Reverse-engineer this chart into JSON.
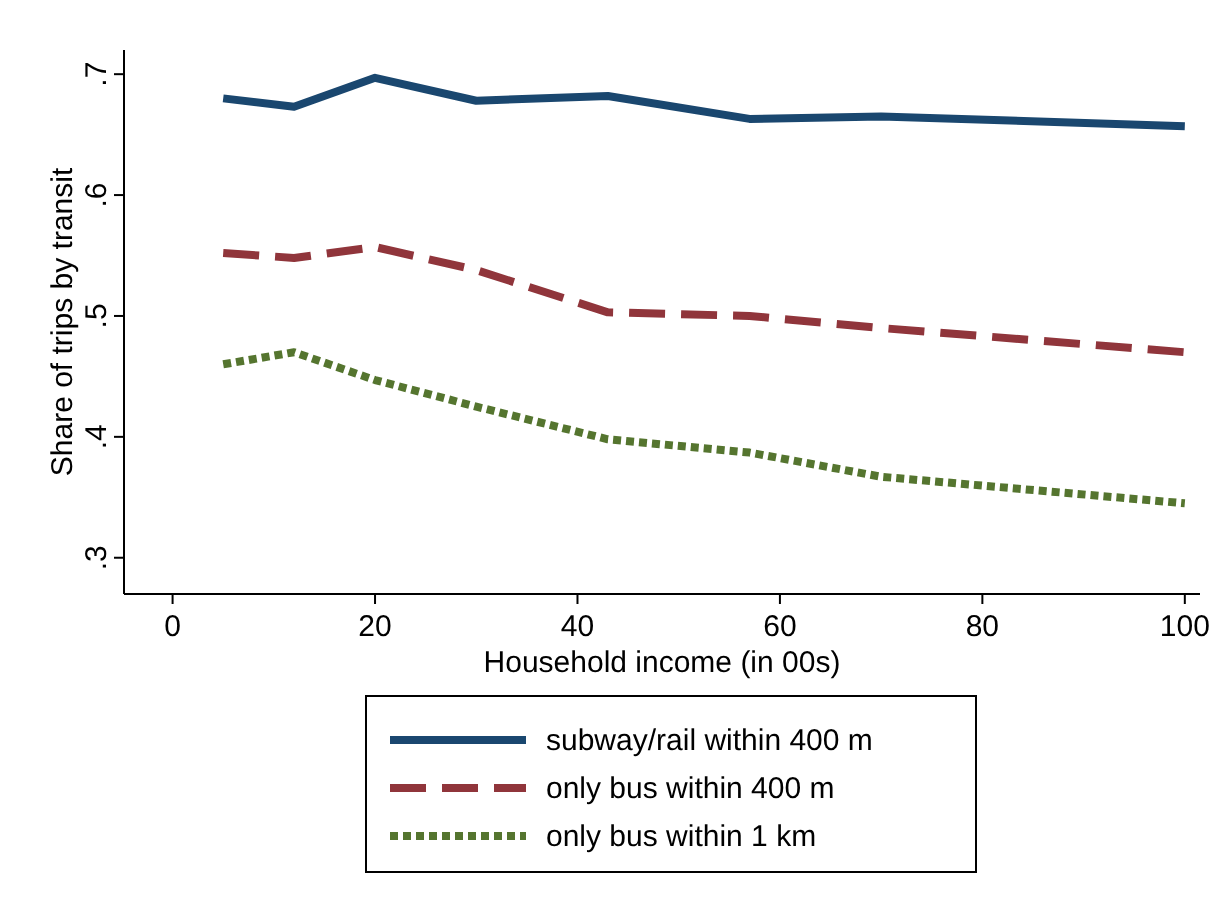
{
  "chart_data": {
    "type": "line",
    "xlabel": "Household income (in 00s)",
    "ylabel": "Share of trips by transit",
    "xlim": [
      -4.8,
      101.5
    ],
    "xticks": [
      0,
      20,
      40,
      60,
      80,
      100
    ],
    "ylim": [
      0.27,
      0.72
    ],
    "yticks": [
      {
        "value": 0.3,
        "label": ".3"
      },
      {
        "value": 0.4,
        "label": ".4"
      },
      {
        "value": 0.5,
        "label": ".5"
      },
      {
        "value": 0.6,
        "label": ".6"
      },
      {
        "value": 0.7,
        "label": ".7"
      }
    ],
    "x": [
      5,
      12,
      20,
      30,
      43,
      57,
      70,
      100
    ],
    "series": [
      {
        "name": "subway/rail within 400 m",
        "color": "#1a476f",
        "line_style": "solid",
        "values": [
          0.68,
          0.673,
          0.697,
          0.678,
          0.682,
          0.663,
          0.665,
          0.657
        ]
      },
      {
        "name": "only bus within 400 m",
        "color": "#90353b",
        "line_style": "dashed",
        "values": [
          0.552,
          0.548,
          0.557,
          0.538,
          0.503,
          0.5,
          0.49,
          0.47
        ]
      },
      {
        "name": "only bus within 1 km",
        "color": "#55752f",
        "line_style": "dotted",
        "values": [
          0.46,
          0.47,
          0.447,
          0.425,
          0.398,
          0.387,
          0.367,
          0.345
        ]
      }
    ],
    "legend": "bottom",
    "grid": false
  }
}
